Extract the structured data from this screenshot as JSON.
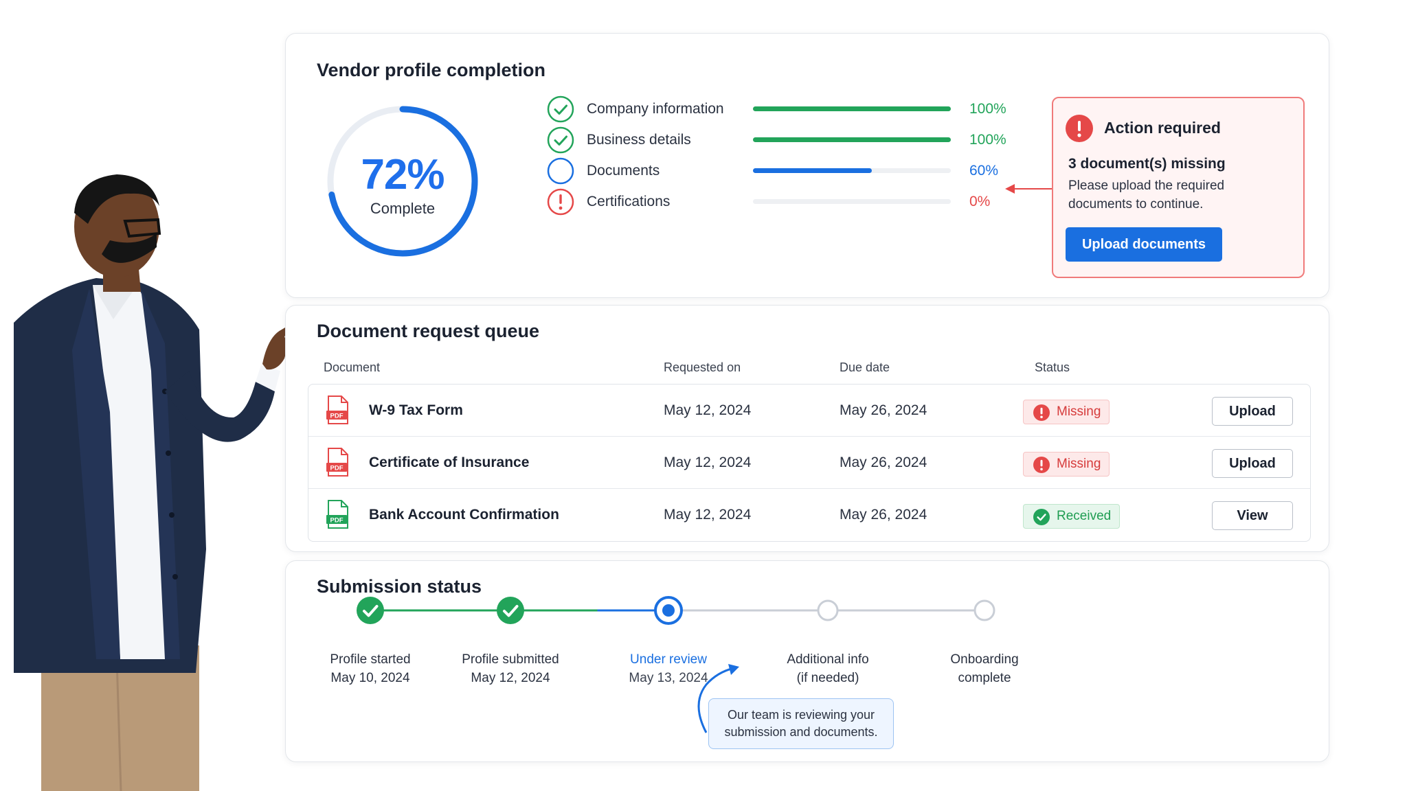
{
  "profile": {
    "title": "Vendor profile completion",
    "progress_fraction": 0.72,
    "percent_label": "72%",
    "complete_label": "Complete",
    "sections": [
      {
        "label": "Company information",
        "percent": "100%",
        "value": 1.0,
        "status": "complete",
        "icon": "check-circle-icon",
        "color": "#22a45a"
      },
      {
        "label": "Business details",
        "percent": "100%",
        "value": 1.0,
        "status": "complete",
        "icon": "check-circle-icon",
        "color": "#22a45a"
      },
      {
        "label": "Documents",
        "percent": "60%",
        "value": 0.6,
        "status": "in-progress",
        "icon": "empty-circle-icon",
        "color": "#1a6fe0"
      },
      {
        "label": "Certifications",
        "percent": "0%",
        "value": 0.0,
        "status": "error",
        "icon": "exclamation-circle-icon",
        "color": "#e54848"
      }
    ],
    "alert": {
      "title": "Action required",
      "subtitle": "3 document(s) missing",
      "body": "Please upload the required documents to continue.",
      "button": "Upload documents"
    }
  },
  "queue": {
    "title": "Document request queue",
    "columns": [
      "Document",
      "Requested on",
      "Due date",
      "Status"
    ],
    "rows": [
      {
        "name": "W-9 Tax Form",
        "requested": "May 12, 2024",
        "due": "May 26, 2024",
        "status": "Missing",
        "action": "Upload",
        "file_icon": "pdf-file-icon",
        "icon_color": "#e54848"
      },
      {
        "name": "Certificate of Insurance",
        "requested": "May 12, 2024",
        "due": "May 26, 2024",
        "status": "Missing",
        "action": "Upload",
        "file_icon": "pdf-file-icon",
        "icon_color": "#e54848"
      },
      {
        "name": "Bank Account Confirmation",
        "requested": "May 12, 2024",
        "due": "May 26, 2024",
        "status": "Received",
        "action": "View",
        "file_icon": "pdf-file-icon",
        "icon_color": "#22a45a"
      }
    ],
    "pdf_label": "PDF"
  },
  "submission": {
    "title": "Submission status",
    "steps": [
      {
        "label": "Profile started",
        "sub": "May 10, 2024",
        "state": "done"
      },
      {
        "label": "Profile submitted",
        "sub": "May 12, 2024",
        "state": "done"
      },
      {
        "label": "Under review",
        "sub": "May 13, 2024",
        "state": "current"
      },
      {
        "label": "Additional info",
        "sub": "(if needed)",
        "state": "pending"
      },
      {
        "label": "Onboarding",
        "sub": "complete",
        "state": "pending"
      }
    ],
    "tooltip": "Our team is reviewing your submission and documents."
  },
  "colors": {
    "accent": "#1a6fe0",
    "success": "#22a45a",
    "danger": "#e54848",
    "track": "#c9ced6"
  }
}
